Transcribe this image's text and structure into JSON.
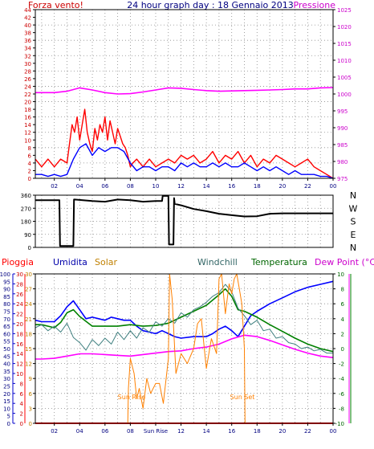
{
  "chart_data": [
    {
      "type": "line",
      "title": "24 hour graph day : 18 Gennaio 2013",
      "left_axis_label": "Forza vento!",
      "right_axis_label": "Pressione",
      "x_ticks": [
        "02",
        "04",
        "06",
        "08",
        "10",
        "12",
        "14",
        "16",
        "18",
        "20",
        "22",
        "00"
      ],
      "x_range": [
        0.5,
        24.0
      ],
      "left_ylim": [
        0,
        44
      ],
      "left_ticks": [
        0,
        2,
        4,
        6,
        8,
        10,
        12,
        14,
        16,
        18,
        20,
        22,
        24,
        26,
        28,
        30,
        32,
        34,
        36,
        38,
        40,
        42,
        44
      ],
      "right_ylim": [
        975,
        1025
      ],
      "right_ticks": [
        975,
        980,
        985,
        990,
        995,
        1000,
        1005,
        1010,
        1015,
        1020,
        1025
      ],
      "series": [
        {
          "role": "gust",
          "color": "#ff0000",
          "x": [
            0.5,
            1.0,
            1.5,
            2.0,
            2.5,
            3.0,
            3.2,
            3.4,
            3.6,
            3.8,
            4.0,
            4.2,
            4.4,
            4.6,
            4.8,
            5.0,
            5.2,
            5.4,
            5.6,
            5.8,
            6.0,
            6.2,
            6.4,
            6.6,
            6.8,
            7.0,
            7.2,
            7.4,
            7.6,
            7.8,
            8.0,
            8.2,
            8.5,
            9.0,
            9.5,
            10.0,
            10.5,
            11.0,
            11.5,
            12.0,
            12.5,
            13.0,
            13.5,
            14.0,
            14.5,
            15.0,
            15.5,
            16.0,
            16.5,
            17.0,
            17.5,
            18.0,
            18.5,
            19.0,
            19.5,
            20.0,
            20.5,
            21.0,
            21.5,
            22.0,
            22.5,
            23.0,
            23.5,
            24.0
          ],
          "y": [
            5,
            3,
            5,
            3,
            5,
            4,
            9,
            14,
            12,
            16,
            10,
            14,
            18,
            12,
            9,
            7,
            13,
            10,
            14,
            12,
            16,
            10,
            15,
            12,
            9,
            13,
            11,
            9,
            8,
            6,
            3,
            4,
            5,
            3,
            5,
            3,
            4,
            5,
            4,
            6,
            5,
            6,
            4,
            5,
            7,
            4,
            6,
            5,
            7,
            4,
            6,
            3,
            5,
            4,
            6,
            5,
            4,
            3,
            4,
            5,
            3,
            2,
            1,
            0
          ]
        },
        {
          "role": "wind",
          "color": "#0000ff",
          "x": [
            0.5,
            1.0,
            1.5,
            2.0,
            2.5,
            3.0,
            3.5,
            4.0,
            4.5,
            5.0,
            5.5,
            6.0,
            6.5,
            7.0,
            7.5,
            8.0,
            8.5,
            9.0,
            9.5,
            10.0,
            10.5,
            11.0,
            11.5,
            12.0,
            12.5,
            13.0,
            13.5,
            14.0,
            14.5,
            15.0,
            15.5,
            16.0,
            16.5,
            17.0,
            17.5,
            18.0,
            18.5,
            19.0,
            19.5,
            20.0,
            20.5,
            21.0,
            21.5,
            22.0,
            22.5,
            23.0,
            23.5,
            24.0
          ],
          "y": [
            1,
            1,
            0.5,
            1,
            0.5,
            1,
            5,
            8,
            9,
            6,
            8,
            7,
            8,
            8,
            7,
            4,
            2,
            3,
            3,
            2,
            3,
            3,
            2,
            4,
            3,
            4,
            3,
            3,
            4,
            3,
            4,
            3,
            3,
            4,
            3,
            2,
            3,
            2,
            3,
            2,
            1,
            2,
            1,
            1,
            1,
            0.5,
            0.5,
            0
          ]
        },
        {
          "role": "pressure",
          "color": "#ff00ff",
          "axis": "right",
          "x": [
            0.5,
            2.0,
            3.0,
            4.0,
            5.0,
            6.0,
            7.0,
            8.0,
            9.0,
            10.0,
            11.0,
            12.0,
            13.0,
            14.0,
            15.0,
            16.0,
            17.0,
            18.0,
            19.0,
            20.0,
            21.0,
            22.0,
            23.0,
            24.0
          ],
          "y": [
            1000.4,
            1000.4,
            1000.8,
            1001.8,
            1001.2,
            1000.4,
            1000.0,
            1000.1,
            1000.6,
            1001.2,
            1001.8,
            1001.7,
            1001.3,
            1001.0,
            1000.8,
            1000.9,
            1001.0,
            1001.1,
            1001.2,
            1001.3,
            1001.5,
            1001.5,
            1001.8,
            1001.9
          ]
        }
      ]
    },
    {
      "type": "line",
      "right_axis_label": [
        "N",
        "W",
        "S",
        "E",
        "N"
      ],
      "x_range": [
        0.5,
        24.0
      ],
      "ylim": [
        0,
        360
      ],
      "y_ticks": [
        0,
        90,
        180,
        270,
        360
      ],
      "series": [
        {
          "role": "direction",
          "color": "#000000",
          "x": [
            0.5,
            2.0,
            2.4,
            2.45,
            2.5,
            3.0,
            3.5,
            3.55,
            3.6,
            5.0,
            6.0,
            7.0,
            8.0,
            9.0,
            10.0,
            10.5,
            10.55,
            10.6,
            11.0,
            11.05,
            11.1,
            11.4,
            11.45,
            11.5,
            12.0,
            13.0,
            14.0,
            15.0,
            16.0,
            17.0,
            18.0,
            19.0,
            20.0,
            21.0,
            22.0,
            23.0,
            24.0
          ],
          "y": [
            325,
            325,
            325,
            10,
            10,
            10,
            10,
            330,
            330,
            320,
            315,
            330,
            325,
            315,
            320,
            320,
            355,
            355,
            355,
            20,
            20,
            20,
            340,
            300,
            290,
            265,
            250,
            232,
            222,
            213,
            215,
            232,
            235,
            235,
            235,
            235,
            235
          ]
        }
      ]
    },
    {
      "type": "line",
      "labels": [
        "Pioggia",
        "Umidita",
        "Solar",
        "Windchill",
        "Temperatura",
        "Dew Point (°C)"
      ],
      "x_ticks": [
        "02",
        "04",
        "06",
        "08",
        "Sun Rise",
        "12",
        "14",
        "16",
        "18",
        "20",
        "22",
        "00"
      ],
      "x_range": [
        0.5,
        24.0
      ],
      "humidity_ticks": [
        0,
        5,
        10,
        15,
        20,
        25,
        30,
        35,
        40,
        45,
        50,
        55,
        60,
        65,
        70,
        75,
        80,
        85,
        90,
        95,
        100
      ],
      "humidity_ylim": [
        0,
        100
      ],
      "rain_ticks": [
        0,
        2,
        4,
        6,
        8,
        10,
        12,
        14,
        16,
        18,
        20,
        22,
        24,
        26,
        28,
        30
      ],
      "rain_ylim": [
        0,
        30
      ],
      "solar_ticks": [
        0,
        3,
        6,
        9,
        12,
        15,
        18,
        21,
        24,
        27,
        30
      ],
      "solar_ylim": [
        0,
        30
      ],
      "temp_ticks": [
        -10,
        -8,
        -6,
        -4,
        -2,
        0,
        2,
        4,
        6,
        8,
        10
      ],
      "temp_ylim": [
        -10,
        10
      ],
      "annotations": [
        {
          "text": "Sun Rise",
          "x": 7.9,
          "y": -5
        },
        {
          "text": "Sun Set",
          "x": 17.1,
          "y": -5
        }
      ],
      "series": [
        {
          "role": "rain",
          "color": "#ff0000",
          "axis": "rain",
          "x": [
            0.5,
            24.0
          ],
          "y": [
            0,
            0
          ]
        },
        {
          "role": "humidity",
          "color": "#0000ff",
          "axis": "humidity",
          "x": [
            0.5,
            1.0,
            2.0,
            2.5,
            3.0,
            3.5,
            4.0,
            4.5,
            5.0,
            5.5,
            6.0,
            6.5,
            7.0,
            7.5,
            8.0,
            8.5,
            9.0,
            9.5,
            10.0,
            10.5,
            11.0,
            11.5,
            12.0,
            13.0,
            14.0,
            14.5,
            15.0,
            15.5,
            16.0,
            16.5,
            17.0,
            17.5,
            18.0,
            19.0,
            20.0,
            21.0,
            22.0,
            23.0,
            24.0
          ],
          "y": [
            69,
            68,
            68,
            72,
            78,
            82,
            76,
            70,
            71,
            70,
            69,
            71,
            70,
            69,
            69,
            65,
            62,
            61,
            60,
            62,
            60,
            58,
            57,
            58,
            58,
            60,
            63,
            65,
            62,
            58,
            65,
            72,
            75,
            80,
            84,
            88,
            91,
            93,
            95
          ]
        },
        {
          "role": "dewpoint",
          "color": "#ff00ff",
          "axis": "temp",
          "x": [
            0.5,
            1.0,
            2.0,
            3.0,
            4.0,
            5.0,
            6.0,
            7.0,
            8.0,
            9.0,
            10.0,
            11.0,
            12.0,
            13.0,
            14.0,
            15.0,
            16.0,
            17.0,
            18.0,
            19.0,
            20.0,
            21.0,
            22.0,
            23.0,
            24.0
          ],
          "y": [
            -1.4,
            -1.4,
            -1.3,
            -1.0,
            -0.7,
            -0.7,
            -0.8,
            -0.9,
            -1.0,
            -0.8,
            -0.6,
            -0.4,
            -0.3,
            0.0,
            0.2,
            0.6,
            1.3,
            1.8,
            1.6,
            1.1,
            0.5,
            -0.1,
            -0.6,
            -1.0,
            -1.2
          ]
        },
        {
          "role": "temperature",
          "color": "#008000",
          "axis": "temp",
          "x": [
            0.5,
            1.0,
            2.0,
            2.5,
            3.0,
            3.5,
            4.0,
            5.0,
            6.0,
            7.0,
            8.0,
            9.0,
            10.0,
            11.0,
            12.0,
            13.0,
            14.0,
            15.0,
            15.5,
            16.0,
            16.5,
            17.0,
            18.0,
            19.0,
            20.0,
            21.0,
            22.0,
            23.0,
            24.0
          ],
          "y": [
            3.2,
            3.2,
            2.8,
            3.5,
            4.8,
            5.2,
            4.3,
            3.0,
            3.0,
            3.0,
            3.2,
            3.0,
            3.1,
            3.4,
            4.2,
            5.0,
            5.8,
            7.2,
            8.0,
            7.0,
            5.2,
            5.0,
            4.2,
            3.2,
            2.3,
            1.4,
            0.6,
            0.0,
            -0.4
          ]
        },
        {
          "role": "windchill",
          "color": "#408080",
          "axis": "temp",
          "x": [
            0.5,
            1.0,
            1.5,
            2.0,
            2.5,
            3.0,
            3.5,
            4.0,
            4.5,
            5.0,
            5.5,
            6.0,
            6.5,
            7.0,
            7.5,
            8.0,
            8.5,
            9.0,
            9.5,
            10.0,
            10.5,
            11.0,
            11.5,
            12.0,
            12.5,
            13.0,
            13.5,
            14.0,
            14.5,
            15.0,
            15.5,
            16.0,
            16.5,
            17.0,
            17.5,
            18.0,
            18.5,
            19.0,
            19.5,
            20.0,
            20.5,
            21.0,
            21.5,
            22.0,
            22.5,
            23.0,
            23.5,
            24.0
          ],
          "y": [
            2.8,
            3.2,
            2.4,
            3.0,
            2.2,
            3.4,
            1.5,
            0.8,
            -0.2,
            1.2,
            0.4,
            1.4,
            0.6,
            2.2,
            1.2,
            2.4,
            1.4,
            2.8,
            2.2,
            3.6,
            3.0,
            4.0,
            3.4,
            4.8,
            4.2,
            5.2,
            5.6,
            6.2,
            7.0,
            7.5,
            8.6,
            7.6,
            5.4,
            4.4,
            3.2,
            3.8,
            2.4,
            2.6,
            1.4,
            1.6,
            0.8,
            0.6,
            0.0,
            0.2,
            -0.3,
            -0.1,
            -0.6,
            -0.6
          ]
        },
        {
          "role": "solar",
          "color": "#ff8000",
          "axis": "solar",
          "x": [
            7.8,
            7.85,
            8.0,
            8.3,
            8.5,
            8.7,
            9.0,
            9.3,
            9.6,
            10.0,
            10.3,
            10.6,
            11.0,
            11.1,
            11.3,
            11.6,
            12.0,
            12.5,
            13.0,
            13.3,
            13.6,
            14.0,
            14.4,
            14.8,
            15.0,
            15.2,
            15.5,
            15.8,
            16.0,
            16.2,
            16.4,
            16.6,
            16.8,
            17.0,
            17.05
          ],
          "y": [
            0,
            7,
            13,
            10,
            5,
            7,
            3,
            9,
            6,
            8,
            8,
            4,
            13,
            30,
            25,
            10,
            14,
            12,
            15,
            20,
            21,
            11,
            17,
            14,
            29,
            30,
            22,
            28,
            26,
            29,
            30,
            27,
            24,
            15,
            0
          ]
        }
      ]
    }
  ]
}
